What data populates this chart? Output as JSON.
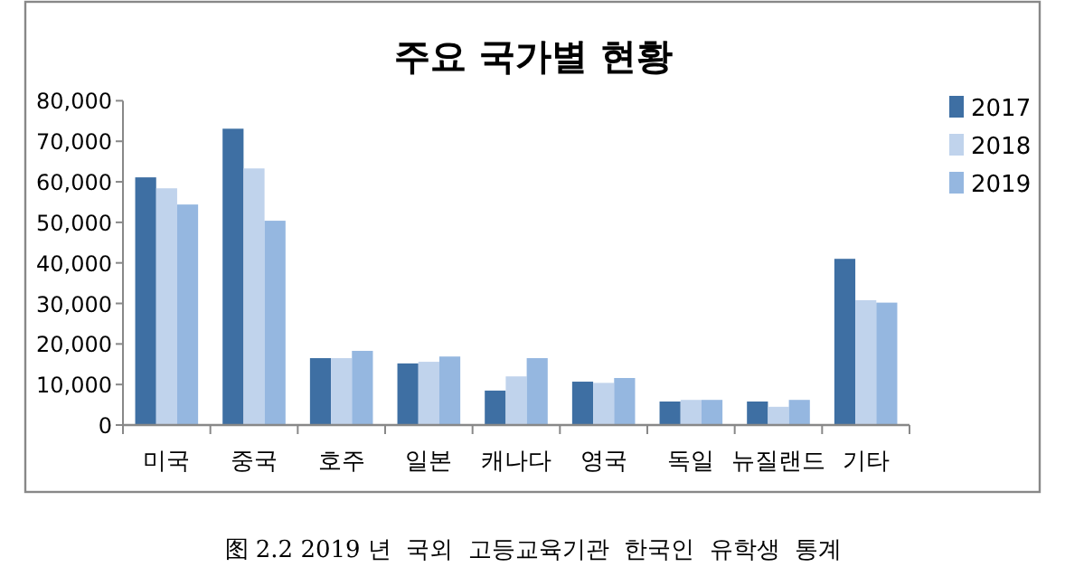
{
  "chart_data": {
    "type": "bar",
    "title": "주요 국가별 현황",
    "categories": [
      "미국",
      "중국",
      "호주",
      "일본",
      "캐나다",
      "영국",
      "독일",
      "뉴질랜드",
      "기타"
    ],
    "series": [
      {
        "name": "2017",
        "color": "#3e6fa3",
        "values": [
          61100,
          73100,
          16500,
          15200,
          8500,
          10700,
          5800,
          5800,
          41000
        ]
      },
      {
        "name": "2018",
        "color": "#c0d3ec",
        "values": [
          58400,
          63300,
          16500,
          15600,
          12000,
          10400,
          6200,
          4500,
          30800
        ]
      },
      {
        "name": "2019",
        "color": "#95b7e0",
        "values": [
          54400,
          50400,
          18300,
          16900,
          16500,
          11600,
          6200,
          6200,
          30200
        ]
      }
    ],
    "ylim": [
      0,
      80000
    ],
    "yticks": [
      {
        "value": 0,
        "label": "0"
      },
      {
        "value": 10000,
        "label": "10,000"
      },
      {
        "value": 20000,
        "label": "20,000"
      },
      {
        "value": 30000,
        "label": "30,000"
      },
      {
        "value": 40000,
        "label": "40,000"
      },
      {
        "value": 50000,
        "label": "50,000"
      },
      {
        "value": 60000,
        "label": "60,000"
      },
      {
        "value": 70000,
        "label": "70,000"
      },
      {
        "value": 80000,
        "label": "80,000"
      }
    ],
    "legend": "right",
    "grid": false,
    "annotations": [
      "图 2.2 2019 년  국외  고등교육기관  한국인  유학생  통계"
    ]
  }
}
